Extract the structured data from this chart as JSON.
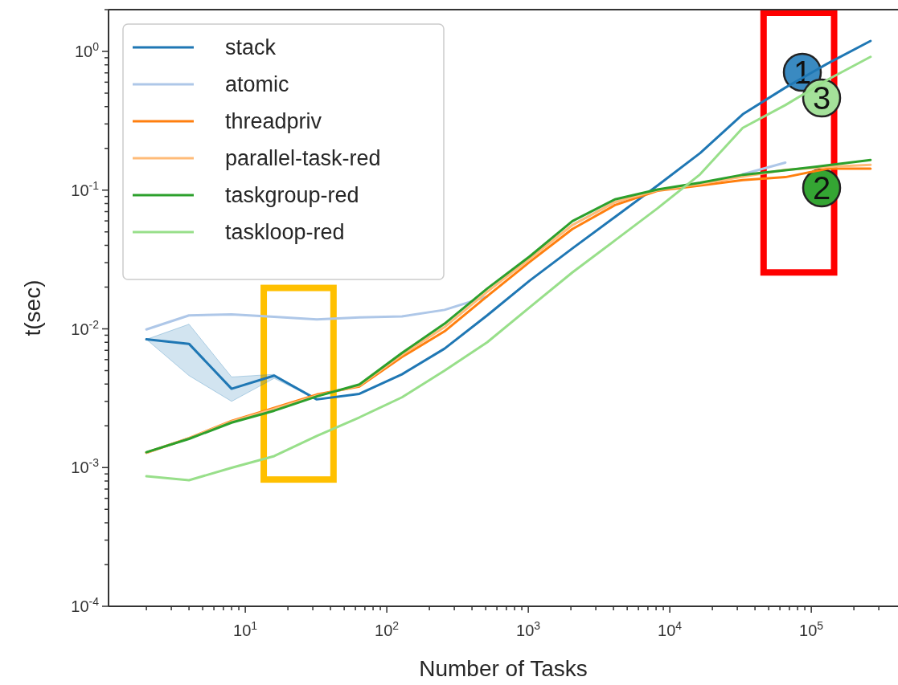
{
  "chart_data": {
    "type": "line",
    "xlabel": "Number of Tasks",
    "ylabel": "t(sec)",
    "log": "xy",
    "legend": "top left",
    "grid": false,
    "marker": "none",
    "line_style": "solid",
    "x": [
      2,
      4,
      8,
      16,
      32,
      64,
      128,
      256,
      512,
      1024,
      2048,
      4096,
      8192,
      16384,
      32768,
      65536,
      131072,
      262144
    ],
    "xlim": [
      1.08,
      410000
    ],
    "ylim": [
      0.0001,
      2
    ],
    "xticks": [
      {
        "value": 2,
        "label": null
      },
      {
        "value": 3,
        "label": null
      },
      {
        "value": 4,
        "label": null
      },
      {
        "value": 5,
        "label": null
      },
      {
        "value": 6,
        "label": null
      },
      {
        "value": 7,
        "label": null
      },
      {
        "value": 8,
        "label": null
      },
      {
        "value": 9,
        "label": null
      },
      {
        "value": 10,
        "label": "10$^{1}$"
      },
      {
        "value": 20,
        "label": null
      },
      {
        "value": 30,
        "label": null
      },
      {
        "value": 40,
        "label": null
      },
      {
        "value": 50,
        "label": null
      },
      {
        "value": 60,
        "label": null
      },
      {
        "value": 70,
        "label": null
      },
      {
        "value": 80,
        "label": null
      },
      {
        "value": 90,
        "label": null
      },
      {
        "value": 100,
        "label": "10$^{2}$"
      },
      {
        "value": 200,
        "label": null
      },
      {
        "value": 300,
        "label": null
      },
      {
        "value": 400,
        "label": null
      },
      {
        "value": 500,
        "label": null
      },
      {
        "value": 600,
        "label": null
      },
      {
        "value": 700,
        "label": null
      },
      {
        "value": 800,
        "label": null
      },
      {
        "value": 900,
        "label": null
      },
      {
        "value": 1000,
        "label": "10$^{3}$"
      },
      {
        "value": 2000,
        "label": null
      },
      {
        "value": 3000,
        "label": null
      },
      {
        "value": 4000,
        "label": null
      },
      {
        "value": 5000,
        "label": null
      },
      {
        "value": 6000,
        "label": null
      },
      {
        "value": 7000,
        "label": null
      },
      {
        "value": 8000,
        "label": null
      },
      {
        "value": 9000,
        "label": null
      },
      {
        "value": 10000,
        "label": "10$^{4}$"
      },
      {
        "value": 20000,
        "label": null
      },
      {
        "value": 30000,
        "label": null
      },
      {
        "value": 40000,
        "label": null
      },
      {
        "value": 50000,
        "label": null
      },
      {
        "value": 60000,
        "label": null
      },
      {
        "value": 70000,
        "label": null
      },
      {
        "value": 80000,
        "label": null
      },
      {
        "value": 90000,
        "label": null
      },
      {
        "value": 100000,
        "label": "10$^{5}$"
      },
      {
        "value": 200000,
        "label": null
      },
      {
        "value": 300000,
        "label": null
      }
    ],
    "yticks": [
      {
        "value": 0.0001,
        "label": "10$^{-4}$"
      },
      {
        "value": 0.0002,
        "label": null
      },
      {
        "value": 0.0003,
        "label": null
      },
      {
        "value": 0.0004,
        "label": null
      },
      {
        "value": 0.0005,
        "label": null
      },
      {
        "value": 0.0006,
        "label": null
      },
      {
        "value": 0.0007,
        "label": null
      },
      {
        "value": 0.0008,
        "label": null
      },
      {
        "value": 0.0009,
        "label": null
      },
      {
        "value": 0.001,
        "label": "10$^{-3}$"
      },
      {
        "value": 0.002,
        "label": null
      },
      {
        "value": 0.003,
        "label": null
      },
      {
        "value": 0.004,
        "label": null
      },
      {
        "value": 0.005,
        "label": null
      },
      {
        "value": 0.006,
        "label": null
      },
      {
        "value": 0.007,
        "label": null
      },
      {
        "value": 0.008,
        "label": null
      },
      {
        "value": 0.009,
        "label": null
      },
      {
        "value": 0.01,
        "label": "10$^{-2}$"
      },
      {
        "value": 0.02,
        "label": null
      },
      {
        "value": 0.03,
        "label": null
      },
      {
        "value": 0.04,
        "label": null
      },
      {
        "value": 0.05,
        "label": null
      },
      {
        "value": 0.06,
        "label": null
      },
      {
        "value": 0.07,
        "label": null
      },
      {
        "value": 0.08,
        "label": null
      },
      {
        "value": 0.09,
        "label": null
      },
      {
        "value": 0.1,
        "label": "10$^{-1}$"
      },
      {
        "value": 0.2,
        "label": null
      },
      {
        "value": 0.3,
        "label": null
      },
      {
        "value": 0.4,
        "label": null
      },
      {
        "value": 0.5,
        "label": null
      },
      {
        "value": 0.6,
        "label": null
      },
      {
        "value": 0.7,
        "label": null
      },
      {
        "value": 0.8,
        "label": null
      },
      {
        "value": 0.9,
        "label": null
      },
      {
        "value": 1,
        "label": "10$^{0}$"
      },
      {
        "value": 2,
        "label": null
      }
    ],
    "series": [
      {
        "name": "stack",
        "color": "#1f77b4",
        "values": [
          0.0084,
          0.0078,
          0.0037,
          0.0046,
          0.0031,
          0.0034,
          0.0047,
          0.0072,
          0.0125,
          0.0223,
          0.038,
          0.064,
          0.108,
          0.185,
          0.352,
          0.548,
          0.82,
          1.19
        ],
        "lower": [
          0.0084,
          0.0046,
          0.003,
          0.0044,
          0.0031,
          null,
          null,
          null,
          null,
          null,
          null,
          null,
          null,
          null,
          null,
          null,
          null,
          null
        ],
        "upper": [
          0.0084,
          0.0108,
          0.0045,
          0.0047,
          0.0031,
          null,
          null,
          null,
          null,
          null,
          null,
          null,
          null,
          null,
          null,
          null,
          null,
          null
        ]
      },
      {
        "name": "atomic",
        "color": "#aec7e8",
        "values": [
          0.0099,
          0.0125,
          0.0127,
          0.0122,
          0.0117,
          0.0121,
          0.0123,
          0.0137,
          0.0171,
          null,
          0.056,
          0.082,
          0.1,
          null,
          0.13,
          0.158,
          null,
          null
        ]
      },
      {
        "name": "threadpriv",
        "color": "#ff7f0e",
        "values": [
          0.00128,
          0.00163,
          0.00217,
          0.00269,
          0.00336,
          0.00384,
          0.00627,
          0.0096,
          0.0172,
          0.0304,
          0.0524,
          0.078,
          0.099,
          0.108,
          0.118,
          0.124,
          0.143,
          0.143
        ]
      },
      {
        "name": "parallel-task-red",
        "color": "#ffbb78",
        "values": [
          0.00128,
          0.00163,
          0.00215,
          0.00265,
          0.0033,
          0.0039,
          0.0065,
          0.0103,
          0.0185,
          0.032,
          0.056,
          0.082,
          0.1,
          0.111,
          0.125,
          0.14,
          0.147,
          0.152
        ]
      },
      {
        "name": "taskgroup-red",
        "color": "#2ca02c",
        "values": [
          0.00129,
          0.00161,
          0.00211,
          0.00257,
          0.00326,
          0.00397,
          0.0067,
          0.0109,
          0.0195,
          0.0333,
          0.0598,
          0.0858,
          0.101,
          0.113,
          0.129,
          0.139,
          0.151,
          0.165
        ]
      },
      {
        "name": "taskloop-red",
        "color": "#98df8a",
        "values": [
          0.000866,
          0.00081,
          0.000997,
          0.00121,
          0.00169,
          0.0023,
          0.00321,
          0.005,
          0.008,
          0.0143,
          0.0255,
          0.0434,
          0.074,
          0.13,
          0.281,
          0.41,
          0.627,
          0.914
        ]
      }
    ],
    "annotations": [
      "1",
      "2",
      "3"
    ]
  }
}
